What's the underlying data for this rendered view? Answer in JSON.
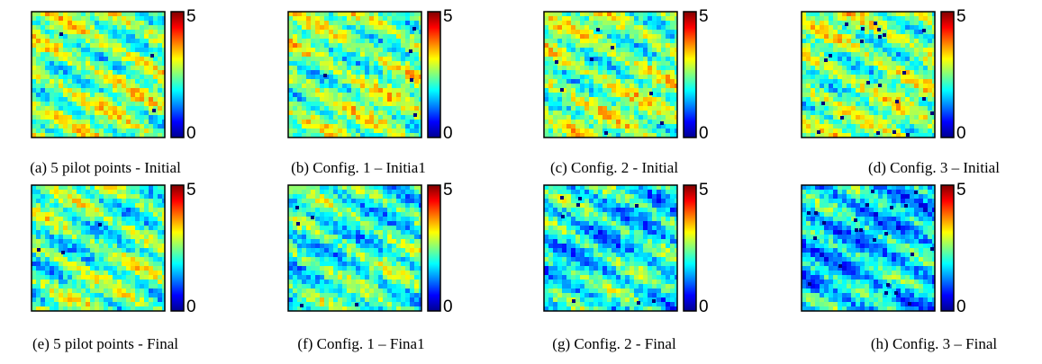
{
  "figure": {
    "colorbar_ticks": [
      0,
      5
    ],
    "panels": [
      {
        "caption": "(a) 5 pilot points - Initial"
      },
      {
        "caption": "(b) Config. 1 – Initia1"
      },
      {
        "caption": "(c) Config. 2 - Initial"
      },
      {
        "caption": "(d) Config. 3 – Initial"
      },
      {
        "caption": "(e) 5 pilot points - Final"
      },
      {
        "caption": "(f) Config. 1 – Fina1"
      },
      {
        "caption": "(g) Config. 2 - Final"
      },
      {
        "caption": "(h) Config. 3 – Final"
      }
    ]
  }
}
